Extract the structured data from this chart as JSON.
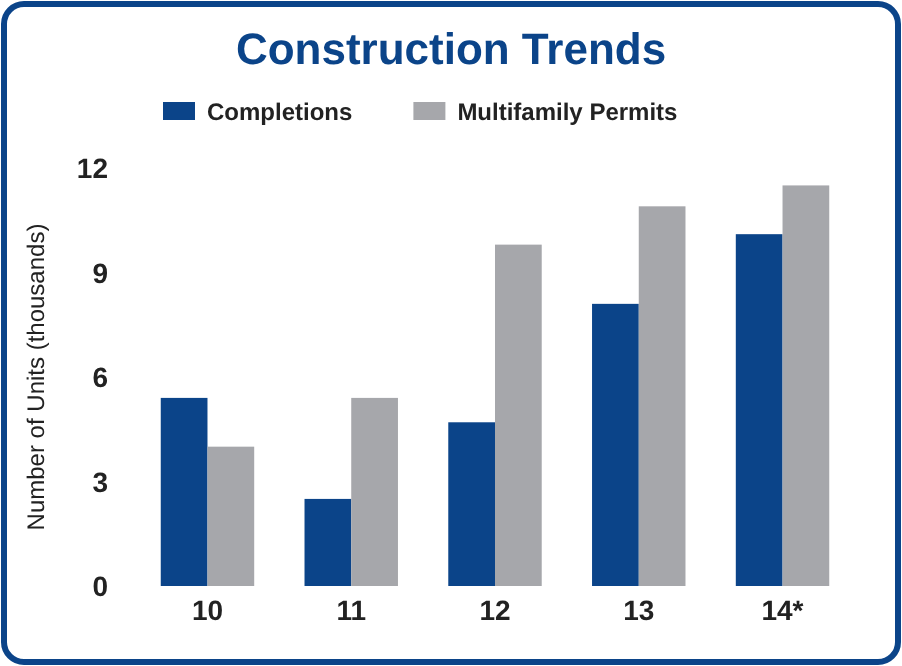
{
  "chart_data": {
    "type": "bar",
    "title": "Construction Trends",
    "ylabel": "Number of Units (thousands)",
    "categories": [
      "10",
      "11",
      "12",
      "13",
      "14*"
    ],
    "series": [
      {
        "name": "Completions",
        "color": "#0b4489",
        "values": [
          5.4,
          2.5,
          4.7,
          8.1,
          10.1
        ]
      },
      {
        "name": "Multifamily Permits",
        "color": "#a6a7ab",
        "values": [
          4.0,
          5.4,
          9.8,
          10.9,
          11.5
        ]
      }
    ],
    "ylim": [
      0,
      12
    ],
    "yticks": [
      0,
      3,
      6,
      9,
      12
    ],
    "legend": "top",
    "grid": false
  }
}
